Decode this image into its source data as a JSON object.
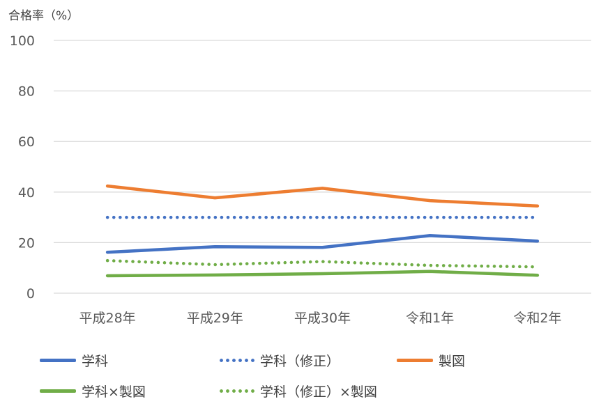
{
  "chart_data": {
    "type": "line",
    "ylabel": "合格率（%）",
    "categories": [
      "平成28年",
      "平成29年",
      "平成30年",
      "令和1年",
      "令和2年"
    ],
    "ylim": [
      0,
      100
    ],
    "yticks": [
      0,
      20,
      40,
      60,
      80,
      100
    ],
    "grid": true,
    "legend_position": "bottom",
    "series": [
      {
        "name": "学科",
        "values": [
          16.2,
          18.4,
          18.1,
          22.8,
          20.6
        ],
        "color": "#4472C4",
        "style": "solid"
      },
      {
        "name": "学科（修正）",
        "values": [
          30.0,
          30.0,
          30.0,
          30.0,
          30.0
        ],
        "color": "#4472C4",
        "style": "dotted"
      },
      {
        "name": "製図",
        "values": [
          42.4,
          37.7,
          41.5,
          36.6,
          34.5
        ],
        "color": "#ED7D31",
        "style": "solid"
      },
      {
        "name": "学科×製図",
        "values": [
          6.9,
          7.2,
          7.7,
          8.6,
          7.1
        ],
        "color": "#70AD47",
        "style": "solid"
      },
      {
        "name": "学科（修正）×製図",
        "values": [
          12.9,
          11.3,
          12.5,
          11.0,
          10.4
        ],
        "color": "#70AD47",
        "style": "dotted"
      }
    ]
  }
}
